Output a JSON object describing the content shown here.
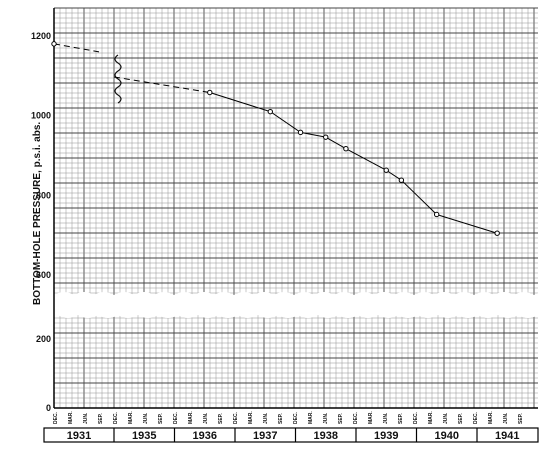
{
  "chart_data": {
    "type": "line",
    "title": "",
    "ylabel": "BOTTOM-HOLE PRESSURE, p.s.i. abs.",
    "xlabel": "",
    "y_ticks": [
      "0",
      "200",
      "600",
      "800",
      "1000",
      "1200"
    ],
    "y_upper_range": [
      550,
      1270
    ],
    "y_lower_range": [
      0,
      270
    ],
    "axis_break": "y axis broken between 270 and 550; x axis broken between 1931 and 1935",
    "grid": true,
    "month_labels": [
      "DEC.",
      "MAR.",
      "JUN.",
      "SEP."
    ],
    "years": [
      "1931",
      "1935",
      "1936",
      "1937",
      "1938",
      "1939",
      "1940",
      "1941"
    ],
    "series": [
      {
        "values_note": "x in years (decimal), y in p.s.i. abs.",
        "points": [
          {
            "x": "Dec 1930",
            "y": 1180
          },
          {
            "x": "Sep 1931",
            "y": 1160
          },
          {
            "x": "Dec 1934",
            "y": 1097
          },
          {
            "x": "Jul 1936",
            "y": 1058
          },
          {
            "x": "Jul 1937",
            "y": 1010
          },
          {
            "x": "Jan 1938",
            "y": 958
          },
          {
            "x": "Jun 1938",
            "y": 946
          },
          {
            "x": "Oct 1938",
            "y": 917
          },
          {
            "x": "Jun 1939",
            "y": 863
          },
          {
            "x": "Sep 1939",
            "y": 838
          },
          {
            "x": "Apr 1940",
            "y": 752
          },
          {
            "x": "Apr 1941",
            "y": 705
          }
        ],
        "points_drawn": [
          "Dec 1930",
          "Jul 1936",
          "Jul 1937",
          "Jan 1938",
          "Jun 1938",
          "Oct 1938",
          "Jun 1939",
          "Sep 1939",
          "Apr 1940",
          "Apr 1941"
        ],
        "dashed_until": "Jul 1936"
      }
    ]
  }
}
